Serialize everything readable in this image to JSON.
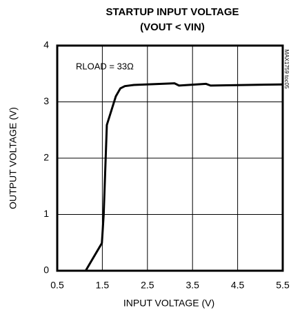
{
  "chart_data": {
    "type": "line",
    "title": "STARTUP INPUT VOLTAGE",
    "subtitle": "(VOUT < VIN)",
    "annotation": "RLOAD = 33Ω",
    "side_note": "MAX1759 toc05",
    "x_label": "INPUT VOLTAGE (V)",
    "y_label": "OUTPUT VOLTAGE (V)",
    "x": [
      1.13,
      1.49,
      1.53,
      1.6,
      1.8,
      1.9,
      2.0,
      2.2,
      3.1,
      3.2,
      3.8,
      3.9,
      5.5
    ],
    "values": [
      0,
      0.49,
      1.0,
      2.59,
      3.1,
      3.24,
      3.28,
      3.3,
      3.33,
      3.29,
      3.32,
      3.29,
      3.31
    ],
    "color": "#000000",
    "xlim": [
      0.5,
      5.5
    ],
    "xticks": [
      0.5,
      1.5,
      2.5,
      3.5,
      4.5,
      5.5
    ],
    "ylim": [
      0,
      4
    ],
    "yticks": [
      0,
      1,
      2,
      3,
      4
    ],
    "grid": true
  }
}
